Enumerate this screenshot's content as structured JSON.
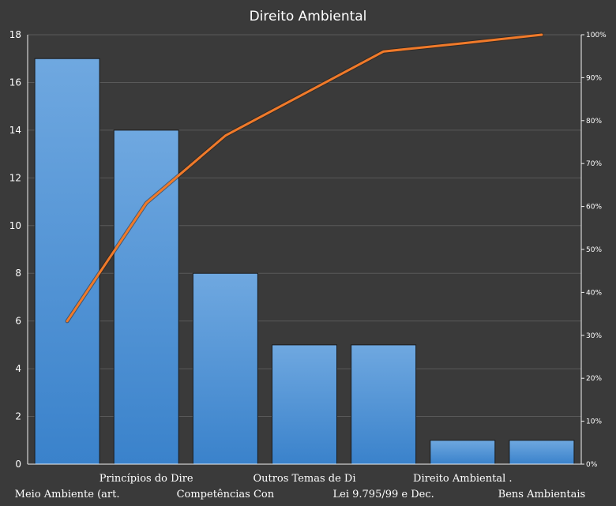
{
  "chart_data": {
    "type": "bar",
    "title": "Direito Ambiental",
    "categories": [
      "Meio Ambiente (art.",
      "Princípios do Dire",
      "Competências Con",
      "Outros Temas de Di",
      "Lei 9.795/99 e Dec.",
      "Direito Ambiental .",
      "Bens Ambientais"
    ],
    "values": [
      17,
      14,
      8,
      5,
      5,
      1,
      1
    ],
    "cumulative_percent": [
      33.3,
      60.8,
      76.5,
      86.3,
      96.1,
      98.0,
      100.0
    ],
    "ylim": [
      0,
      18
    ],
    "yticks": [
      0,
      2,
      4,
      6,
      8,
      10,
      12,
      14,
      16,
      18
    ],
    "y2lim": [
      0,
      100
    ],
    "y2ticks": [
      "0%",
      "10%",
      "20%",
      "30%",
      "40%",
      "50%",
      "60%",
      "70%",
      "80%",
      "90%",
      "100%"
    ],
    "grid": true,
    "legend": "none",
    "colors": {
      "background": "#3a3a3a",
      "bar_top": "#6fa8e0",
      "bar_bottom": "#3a82cb",
      "line": "#f07a2a",
      "grid": "#595959",
      "text": "#ffffff"
    }
  }
}
